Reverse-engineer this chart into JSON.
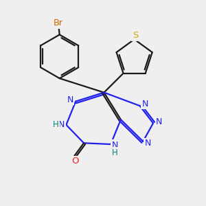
{
  "bg_color": "#efefef",
  "bond_color": "#1a1a1a",
  "n_color": "#2020ee",
  "o_color": "#ee2020",
  "s_color": "#ccaa00",
  "br_color": "#cc6600",
  "h_color": "#008878",
  "lw": 1.6,
  "doff": 0.09
}
